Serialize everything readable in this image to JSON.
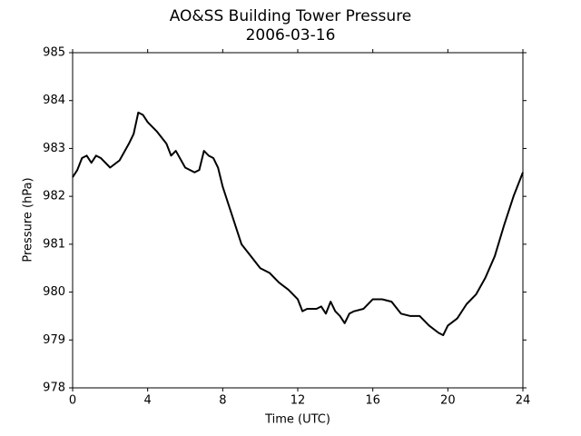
{
  "chart_data": {
    "type": "line",
    "title": "AO&SS Building Tower Pressure",
    "subtitle": "2006-03-16",
    "x_label": "Time (UTC)",
    "y_label": "Pressure (hPa)",
    "x": [
      0,
      0.25,
      0.5,
      0.75,
      1.0,
      1.25,
      1.5,
      2.0,
      2.5,
      3.0,
      3.25,
      3.5,
      3.75,
      4.0,
      4.5,
      5.0,
      5.25,
      5.5,
      6.0,
      6.5,
      6.75,
      7.0,
      7.25,
      7.5,
      7.75,
      8.0,
      8.5,
      9.0,
      9.5,
      10.0,
      10.5,
      11.0,
      11.5,
      12.0,
      12.25,
      12.5,
      13.0,
      13.25,
      13.5,
      13.75,
      14.0,
      14.25,
      14.5,
      14.75,
      15.0,
      15.5,
      16.0,
      16.5,
      17.0,
      17.5,
      18.0,
      18.5,
      19.0,
      19.5,
      19.75,
      20.0,
      20.5,
      21.0,
      21.5,
      22.0,
      22.5,
      23.0,
      23.5,
      24.0
    ],
    "series": [
      {
        "name": "Pressure",
        "color": "#000000",
        "values": [
          982.4,
          982.55,
          982.8,
          982.85,
          982.7,
          982.85,
          982.8,
          982.6,
          982.75,
          983.1,
          983.3,
          983.75,
          983.7,
          983.55,
          983.35,
          983.1,
          982.85,
          982.95,
          982.6,
          982.5,
          982.55,
          982.95,
          982.85,
          982.8,
          982.6,
          982.2,
          981.6,
          981.0,
          980.75,
          980.5,
          980.4,
          980.2,
          980.05,
          979.85,
          979.6,
          979.65,
          979.65,
          979.7,
          979.55,
          979.8,
          979.6,
          979.5,
          979.35,
          979.55,
          979.6,
          979.65,
          979.85,
          979.85,
          979.8,
          979.55,
          979.5,
          979.5,
          979.3,
          979.15,
          979.1,
          979.3,
          979.45,
          979.75,
          979.95,
          980.3,
          980.75,
          981.4,
          982.0,
          982.5
        ]
      }
    ],
    "xlim": [
      0,
      24
    ],
    "xticks": [
      0,
      4,
      8,
      12,
      16,
      20,
      24
    ],
    "ylim": [
      978,
      985
    ],
    "yticks": [
      978,
      979,
      980,
      981,
      982,
      983,
      984,
      985
    ],
    "grid": false
  }
}
